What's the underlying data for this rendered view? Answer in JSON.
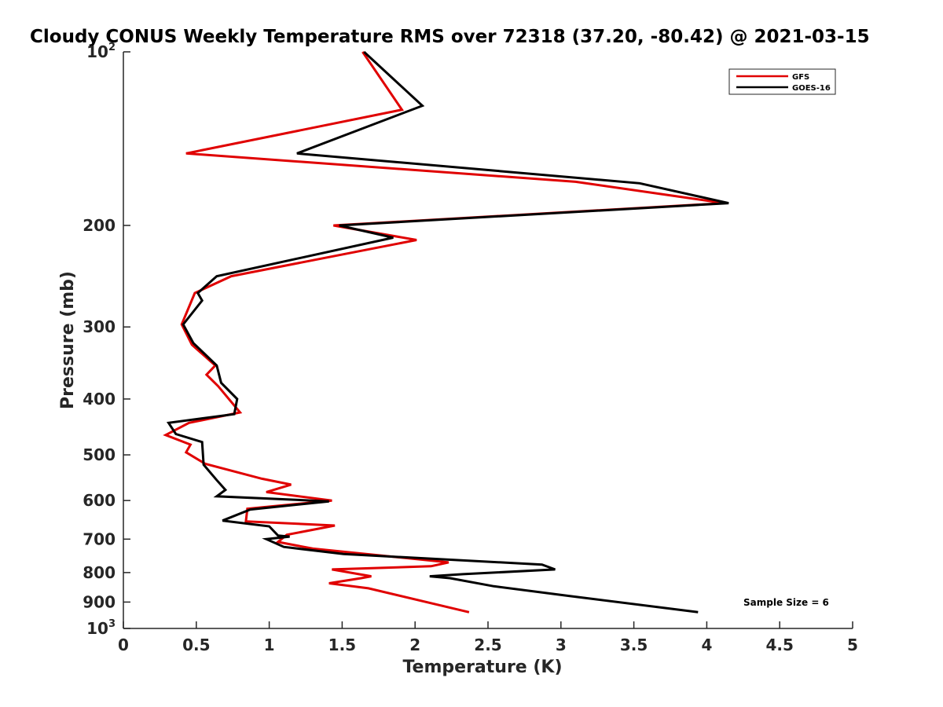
{
  "chart_data": {
    "type": "line",
    "title": "Cloudy CONUS Weekly Temperature RMS over 72318 (37.20, -80.42) @ 2021-03-15",
    "xlabel": "Temperature (K)",
    "ylabel": "Pressure (mb)",
    "xlim": [
      0,
      5
    ],
    "ylim": [
      100,
      1000
    ],
    "yscale": "log",
    "y_reversed": true,
    "grid": false,
    "legend_position": "top-right",
    "x_ticks": [
      "0",
      "0.5",
      "1",
      "1.5",
      "2",
      "2.5",
      "3",
      "3.5",
      "4",
      "4.5",
      "5"
    ],
    "y_ticks": [
      {
        "value": 100,
        "base": "10",
        "exp": "2"
      },
      {
        "value": 200,
        "label": "200"
      },
      {
        "value": 300,
        "label": "300"
      },
      {
        "value": 400,
        "label": "400"
      },
      {
        "value": 500,
        "label": "500"
      },
      {
        "value": 600,
        "label": "600"
      },
      {
        "value": 700,
        "label": "700"
      },
      {
        "value": 800,
        "label": "800"
      },
      {
        "value": 900,
        "label": "900"
      },
      {
        "value": 1000,
        "base": "10",
        "exp": "3"
      }
    ],
    "annotation": "Sample Size = 6",
    "series": [
      {
        "name": "GFS",
        "color": "#e00000",
        "x": [
          1.64,
          1.91,
          0.43,
          3.1,
          4.12,
          1.44,
          2.01,
          0.74,
          0.49,
          0.4,
          0.47,
          0.63,
          0.57,
          0.65,
          0.8,
          0.45,
          0.29,
          0.46,
          0.43,
          0.56,
          0.95,
          1.15,
          0.98,
          1.43,
          0.85,
          0.84,
          1.45,
          1.12,
          1.06,
          1.3,
          2.23,
          2.11,
          1.43,
          1.7,
          1.63,
          1.41,
          1.68,
          2.37
        ],
        "y": [
          100,
          126,
          150,
          168,
          183,
          200,
          212,
          245,
          262,
          297,
          322,
          350,
          363,
          380,
          422,
          440,
          462,
          480,
          495,
          518,
          550,
          563,
          580,
          600,
          620,
          652,
          663,
          688,
          708,
          727,
          768,
          780,
          790,
          812,
          818,
          835,
          852,
          937
        ]
      },
      {
        "name": "GOES-16",
        "color": "#000000",
        "x": [
          1.65,
          2.05,
          1.19,
          3.54,
          4.15,
          1.48,
          1.85,
          0.64,
          0.51,
          0.54,
          0.41,
          0.48,
          0.64,
          0.67,
          0.78,
          0.76,
          0.31,
          0.36,
          0.54,
          0.55,
          0.64,
          0.7,
          0.64,
          1.41,
          0.87,
          0.68,
          1.0,
          1.06,
          1.14,
          0.98,
          1.1,
          1.51,
          2.87,
          2.96,
          2.33,
          2.1,
          2.24,
          2.54,
          3.05,
          3.94
        ],
        "y": [
          100,
          124,
          150,
          169,
          183,
          200,
          210,
          245,
          262,
          270,
          297,
          320,
          350,
          375,
          400,
          425,
          440,
          460,
          475,
          520,
          553,
          575,
          590,
          602,
          622,
          650,
          665,
          690,
          693,
          700,
          722,
          743,
          775,
          790,
          805,
          812,
          818,
          845,
          878,
          937
        ]
      }
    ]
  }
}
